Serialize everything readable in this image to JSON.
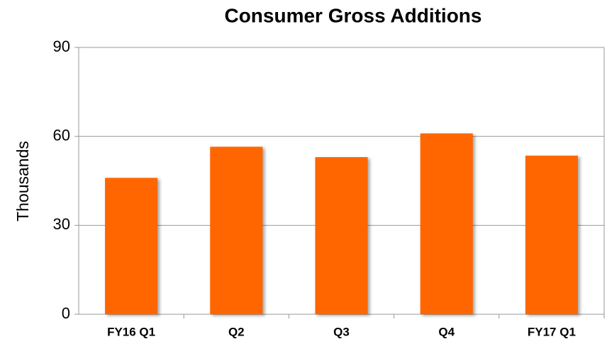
{
  "chart_data": {
    "type": "bar",
    "title": "Consumer Gross Additions",
    "y_label": "Thousands",
    "categories": [
      "FY16 Q1",
      "Q2",
      "Q3",
      "Q4",
      "FY17 Q1"
    ],
    "values": [
      46,
      56.5,
      53,
      61,
      53.5
    ],
    "color": "#ff6600",
    "ylim": [
      0,
      90
    ],
    "yticks": [
      0,
      30,
      60,
      90
    ],
    "grid": true
  }
}
